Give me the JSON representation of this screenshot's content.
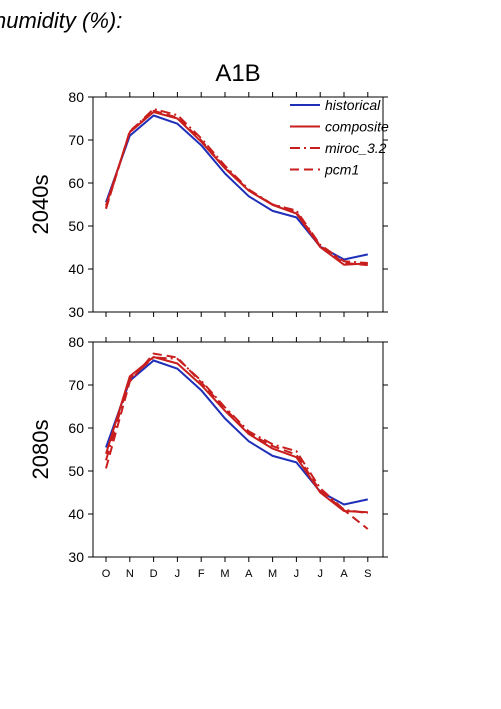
{
  "header": {
    "text": "humidity (%):"
  },
  "title": "A1B",
  "legend": {
    "placement": "top-right",
    "entries": [
      "historical",
      "composite",
      "miroc_3.2",
      "pcm1"
    ]
  },
  "colors": {
    "historical": "#1f2fb8",
    "composite": "#c81e1e",
    "miroc_3.2": "#c81e1e",
    "pcm1": "#c81e1e"
  },
  "chart_data": [
    {
      "type": "line",
      "title": "A1B",
      "ylabel": "2040s",
      "xlabel": "",
      "categories": [
        "O",
        "N",
        "D",
        "J",
        "F",
        "M",
        "A",
        "M",
        "J",
        "J",
        "A",
        "S"
      ],
      "ylim": [
        30,
        80
      ],
      "yticks": [
        30,
        40,
        50,
        60,
        70,
        80
      ],
      "series": [
        {
          "name": "historical",
          "values": [
            55.5,
            71.0,
            75.7,
            73.8,
            68.8,
            62.2,
            56.9,
            53.5,
            52.0,
            45.2,
            42.2,
            43.4
          ]
        },
        {
          "name": "composite",
          "values": [
            54.8,
            71.8,
            76.5,
            75.0,
            69.6,
            63.4,
            58.2,
            54.9,
            52.9,
            45.1,
            41.0,
            41.3
          ]
        },
        {
          "name": "miroc_3.2",
          "values": [
            54.2,
            71.9,
            77.2,
            75.8,
            70.4,
            64.0,
            58.5,
            55.0,
            53.6,
            45.6,
            41.8,
            41.4
          ]
        },
        {
          "name": "pcm1",
          "values": [
            54.0,
            72.1,
            76.8,
            75.2,
            69.9,
            63.6,
            58.3,
            55.0,
            53.2,
            45.4,
            41.4,
            40.9
          ]
        }
      ]
    },
    {
      "type": "line",
      "title": "",
      "ylabel": "2080s",
      "xlabel": "",
      "categories": [
        "O",
        "N",
        "D",
        "J",
        "F",
        "M",
        "A",
        "M",
        "J",
        "J",
        "A",
        "S"
      ],
      "ylim": [
        30,
        80
      ],
      "yticks": [
        30,
        40,
        50,
        60,
        70,
        80
      ],
      "series": [
        {
          "name": "historical",
          "values": [
            55.5,
            71.0,
            75.7,
            73.8,
            68.8,
            62.2,
            56.9,
            53.5,
            52.0,
            45.2,
            42.2,
            43.4
          ]
        },
        {
          "name": "composite",
          "values": [
            54.0,
            72.0,
            76.5,
            75.0,
            70.0,
            64.0,
            58.6,
            55.2,
            53.2,
            45.0,
            40.7,
            40.4
          ]
        },
        {
          "name": "miroc_3.2",
          "values": [
            52.5,
            71.5,
            76.4,
            76.1,
            71.0,
            64.8,
            59.2,
            56.2,
            54.6,
            46.0,
            41.0,
            40.2
          ]
        },
        {
          "name": "pcm1",
          "values": [
            50.6,
            70.8,
            77.3,
            76.4,
            70.6,
            64.5,
            58.8,
            55.8,
            53.8,
            45.4,
            40.9,
            36.5
          ]
        }
      ]
    }
  ]
}
